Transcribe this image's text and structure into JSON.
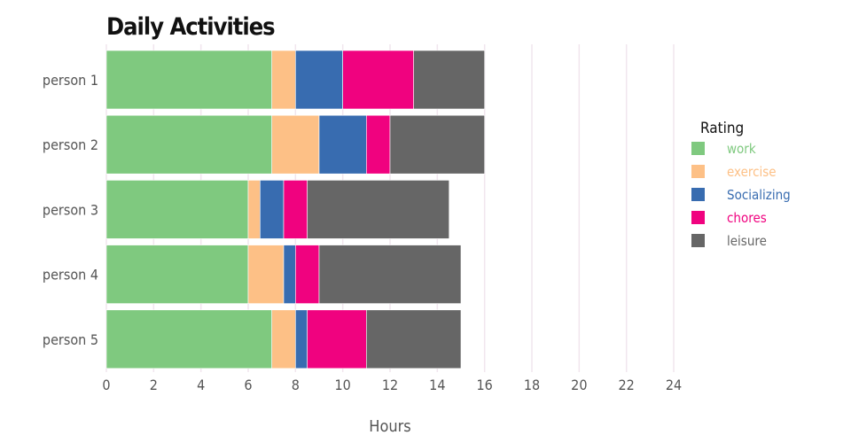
{
  "chart_data": {
    "type": "bar",
    "orientation": "horizontal",
    "stacked": true,
    "title": "Daily Activities",
    "xlabel": "Hours",
    "ylabel": "",
    "xlim": [
      0,
      24
    ],
    "x_ticks": [
      0,
      2,
      4,
      6,
      8,
      10,
      12,
      14,
      16,
      18,
      20,
      22,
      24
    ],
    "categories": [
      "person 1",
      "person 2",
      "person 3",
      "person 4",
      "person 5"
    ],
    "series": [
      {
        "name": "work",
        "color": "#7fc97f",
        "values": [
          7,
          7,
          6,
          6,
          7
        ]
      },
      {
        "name": "exercise",
        "color": "#fdc086",
        "values": [
          1,
          2,
          0.5,
          1.5,
          1
        ]
      },
      {
        "name": "Socializing",
        "color": "#386cb0",
        "values": [
          2,
          2,
          1,
          0.5,
          0.5
        ]
      },
      {
        "name": "chores",
        "color": "#f0027f",
        "values": [
          3,
          1,
          1,
          1,
          2.5
        ]
      },
      {
        "name": "leisure",
        "color": "#666666",
        "values": [
          3,
          4,
          6,
          6,
          4
        ]
      }
    ],
    "legend_title": "Rating",
    "legend_position": "right",
    "grid": "vertical"
  }
}
